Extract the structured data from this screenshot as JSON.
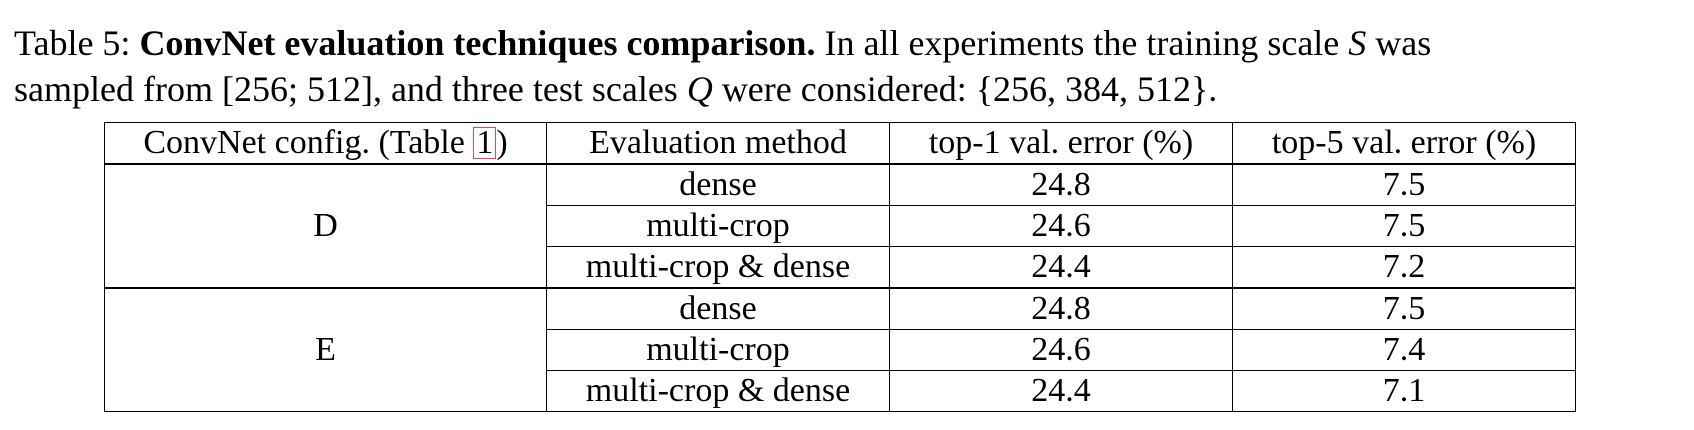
{
  "caption": {
    "label": "Table 5:",
    "title": "ConvNet evaluation techniques comparison.",
    "text_line1_a": "In all experiments the training scale",
    "var_s": "S",
    "text_line1_b": "was",
    "text_line2_a": "sampled from",
    "range": "[256; 512]",
    "text_line2_b": ", and three test scales",
    "var_q": "Q",
    "text_line2_c": "were considered:",
    "set": "{256, 384, 512}",
    "end": "."
  },
  "table": {
    "headers": {
      "config_prefix": "ConvNet config. (Table ",
      "config_ref": "1",
      "config_suffix": ")",
      "method": "Evaluation method",
      "top1": "top-1 val. error (%)",
      "top5": "top-5 val. error (%)"
    },
    "groups": [
      {
        "config": "D",
        "rows": [
          {
            "method": "dense",
            "top1": "24.8",
            "top5": "7.5"
          },
          {
            "method": "multi-crop",
            "top1": "24.6",
            "top5": "7.5"
          },
          {
            "method": "multi-crop & dense",
            "top1": "24.4",
            "top5": "7.2"
          }
        ]
      },
      {
        "config": "E",
        "rows": [
          {
            "method": "dense",
            "top1": "24.8",
            "top5": "7.5"
          },
          {
            "method": "multi-crop",
            "top1": "24.6",
            "top5": "7.4"
          },
          {
            "method": "multi-crop & dense",
            "top1": "24.4",
            "top5": "7.1"
          }
        ]
      }
    ]
  },
  "colors": {
    "reference_box": "#e34b4b"
  }
}
